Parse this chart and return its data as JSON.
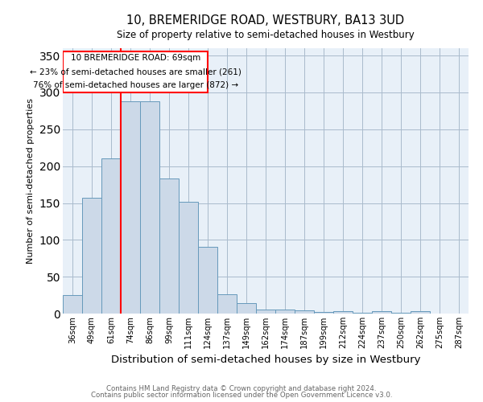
{
  "title": "10, BREMERIDGE ROAD, WESTBURY, BA13 3UD",
  "subtitle": "Size of property relative to semi-detached houses in Westbury",
  "xlabel": "Distribution of semi-detached houses by size in Westbury",
  "ylabel": "Number of semi-detached properties",
  "categories": [
    "36sqm",
    "49sqm",
    "61sqm",
    "74sqm",
    "86sqm",
    "99sqm",
    "111sqm",
    "124sqm",
    "137sqm",
    "149sqm",
    "162sqm",
    "174sqm",
    "187sqm",
    "199sqm",
    "212sqm",
    "224sqm",
    "237sqm",
    "250sqm",
    "262sqm",
    "275sqm",
    "287sqm"
  ],
  "values": [
    25,
    157,
    210,
    288,
    288,
    183,
    152,
    91,
    26,
    14,
    6,
    5,
    4,
    2,
    3,
    1,
    3,
    1,
    3,
    0,
    0
  ],
  "bar_color": "#ccd9e8",
  "bar_edge_color": "#6699bb",
  "red_line_bin": 3,
  "annotation_title": "10 BREMERIDGE ROAD: 69sqm",
  "annotation_line1": "← 23% of semi-detached houses are smaller (261)",
  "annotation_line2": "76% of semi-detached houses are larger (872) →",
  "footer1": "Contains HM Land Registry data © Crown copyright and database right 2024.",
  "footer2": "Contains public sector information licensed under the Open Government Licence v3.0.",
  "ylim": [
    0,
    360
  ],
  "yticks": [
    0,
    50,
    100,
    150,
    200,
    250,
    300,
    350
  ],
  "background_color": "#ffffff",
  "ax_background": "#e8f0f8",
  "grid_color": "#aabbcc"
}
